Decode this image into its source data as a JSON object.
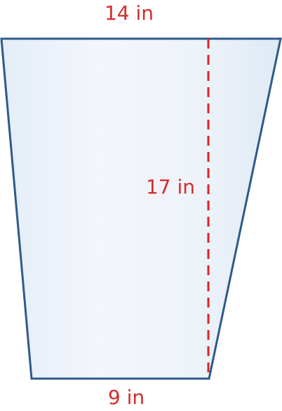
{
  "labels": {
    "top_base": "14 in",
    "height": "17 in",
    "bottom_base": "9 in"
  },
  "colors": {
    "outline": "#2f5a8c",
    "fill_light": "#f4f7fb",
    "fill_dark": "#e0ebf6",
    "height_line": "#e0232a",
    "label": "#d52b2b"
  }
}
